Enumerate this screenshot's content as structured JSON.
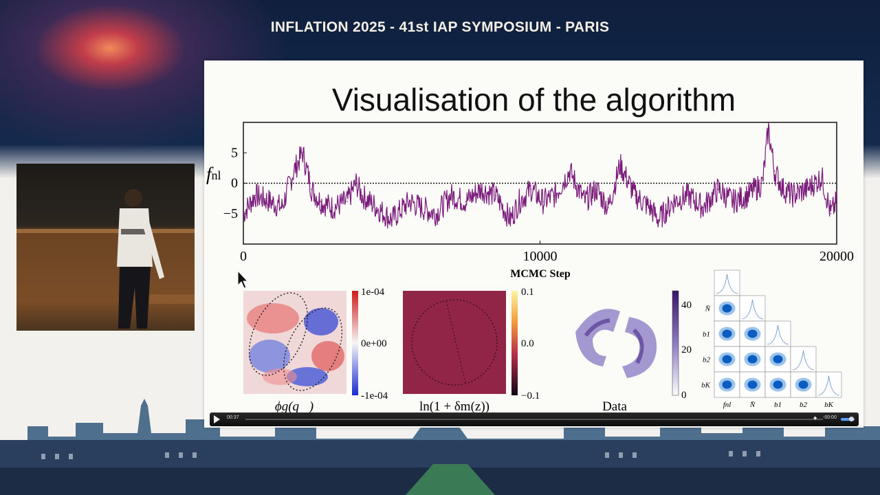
{
  "banner": {
    "title": "INFLATION 2025 - 41st IAP SYMPOSIUM - PARIS"
  },
  "slide": {
    "title": "Visualisation of the algorithm",
    "chart_data": {
      "type": "line",
      "xlabel": "MCMC Step",
      "ylabel": "f_nl",
      "ylabel_main": "f",
      "ylabel_sub": "nl",
      "xlim": [
        0,
        20000
      ],
      "ylim": [
        -10,
        10
      ],
      "x_ticks": [
        "0",
        "10000",
        "20000"
      ],
      "y_ticks": [
        "5",
        "0",
        "−5"
      ],
      "reference_line": 0,
      "color": "#7a1a7a",
      "x": [
        0,
        400,
        900,
        1300,
        1700,
        2000,
        2300,
        2600,
        3000,
        3500,
        3800,
        4000,
        4500,
        5000,
        5600,
        6000,
        6500,
        7000,
        7500,
        8000,
        8500,
        9000,
        9300,
        9700,
        10100,
        10500,
        11000,
        11500,
        11900,
        12300,
        12700,
        13200,
        13700,
        14000,
        14500,
        15000,
        15500,
        16000,
        16500,
        17000,
        17500,
        17700,
        17900,
        18200,
        18500,
        19000,
        19500,
        19800,
        20000
      ],
      "y": [
        -5,
        -2,
        -3,
        -4,
        2,
        5,
        -1,
        -3,
        -4,
        -3,
        0,
        -2,
        -4,
        -6,
        -3,
        -4,
        -5,
        -2,
        -3,
        -1,
        -2,
        -6,
        -3,
        -1,
        -3,
        -2,
        2,
        -3,
        -1,
        -4,
        3,
        -2,
        -4,
        -6,
        -3,
        -2,
        -4,
        -1,
        -3,
        -2,
        0,
        9,
        2,
        -1,
        -2,
        -1,
        1,
        -5,
        -3
      ]
    },
    "panels": {
      "phi": {
        "label": "ϕg(q⃗)",
        "cb_ticks": [
          "1e-04",
          "0e+00",
          "-1e-04"
        ]
      },
      "delta": {
        "label": "ln(1 + δm(z))",
        "cb_ticks": [
          "0.1",
          "0.0",
          "−0.1"
        ]
      },
      "data": {
        "label": "Data",
        "cb_ticks": [
          "40",
          "20",
          "0"
        ]
      },
      "corner": {
        "params_y": [
          "N̄",
          "b1",
          "b2",
          "bK"
        ],
        "params_x": [
          "fnl",
          "N̄",
          "b1",
          "b2",
          "bK"
        ]
      }
    }
  },
  "player": {
    "current_time": "00:37",
    "remaining_time": "-00:00"
  }
}
